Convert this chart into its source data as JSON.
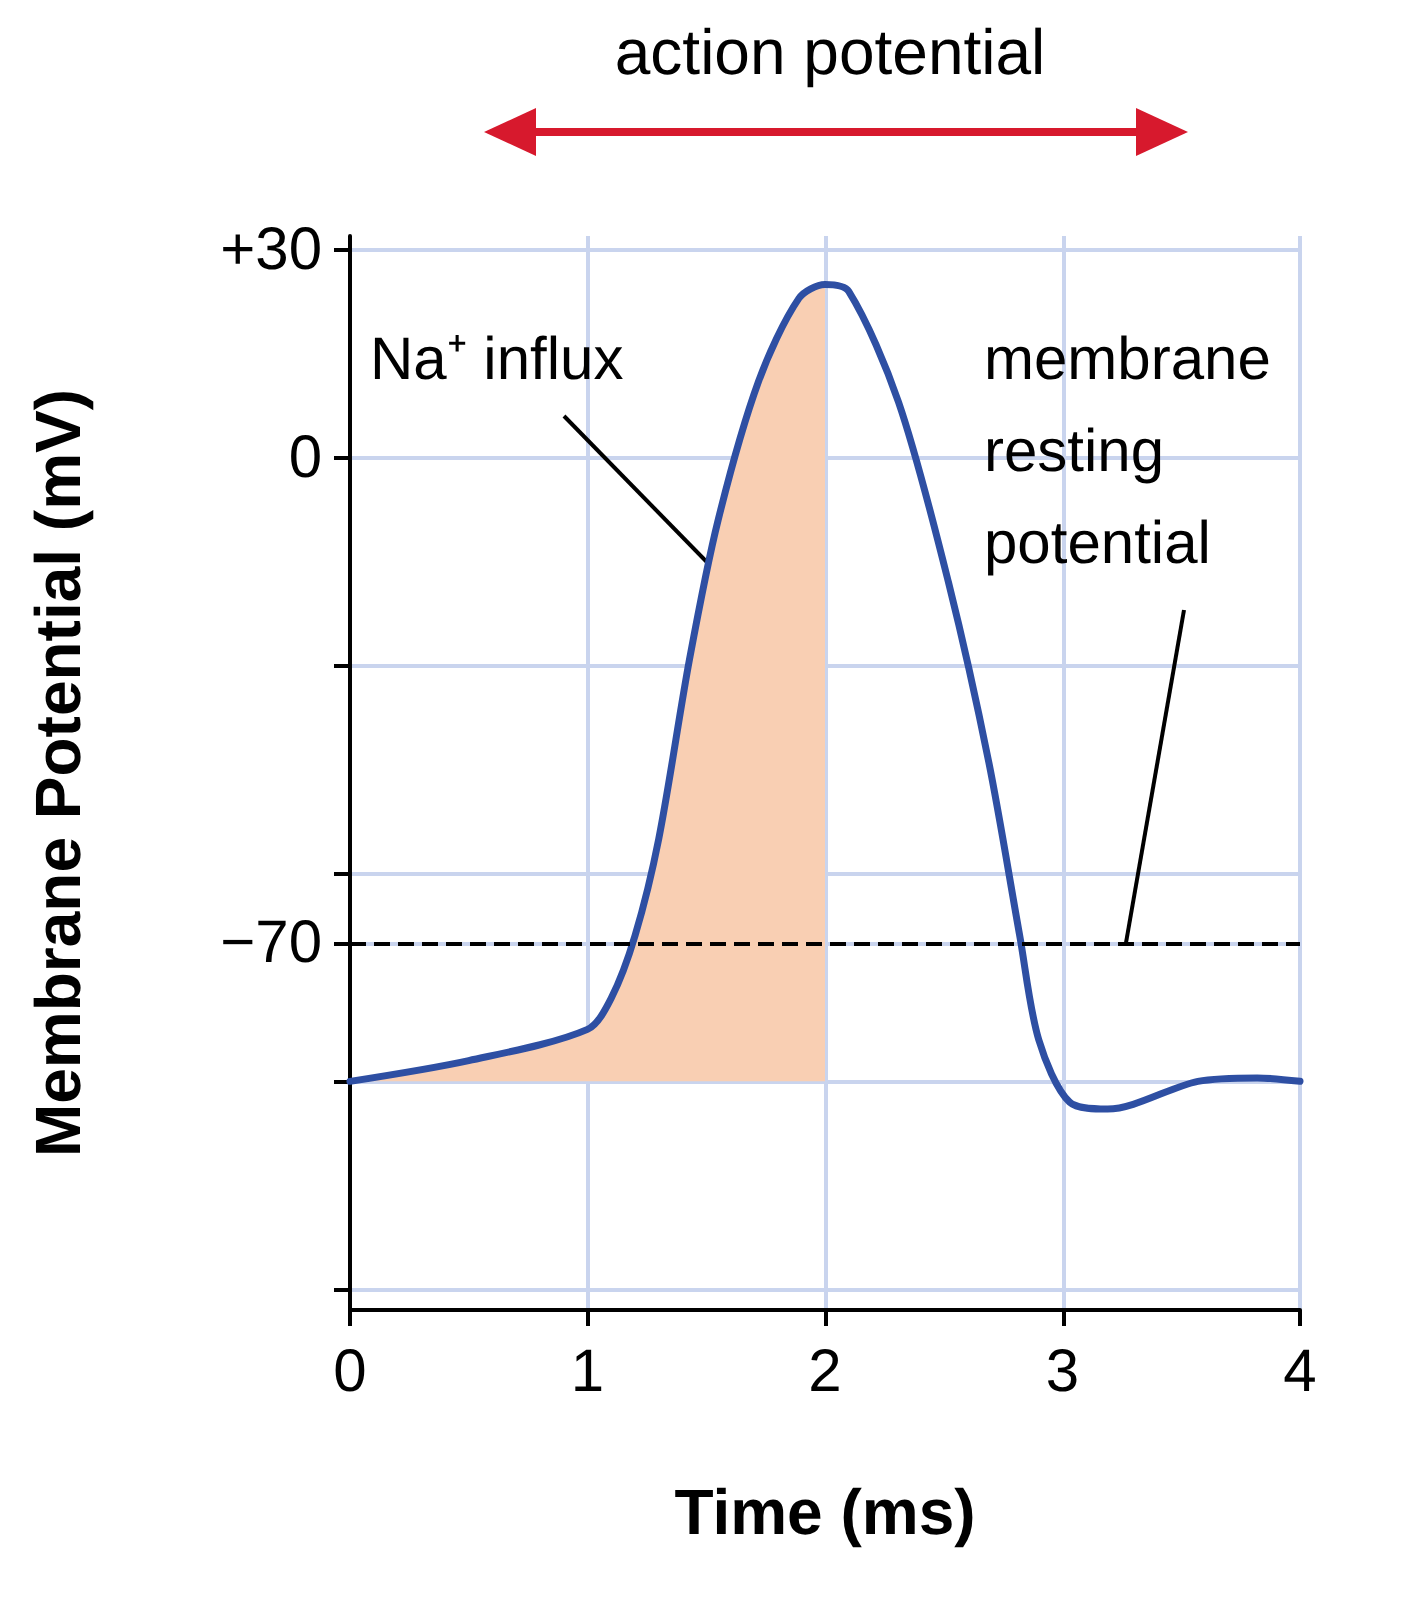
{
  "chart_data": {
    "type": "line",
    "xlabel": "Time (ms)",
    "ylabel": "Membrane Potential (mV)",
    "x": [
      0,
      0.5,
      1,
      1.1,
      1.2,
      1.3,
      1.43,
      1.55,
      1.72,
      1.89,
      2,
      2.1,
      2.31,
      2.52,
      2.69,
      2.82,
      2.9,
      3.03,
      3.19,
      3.57,
      3.82,
      4
    ],
    "series": [
      {
        "color": "#2e4fa3",
        "values": [
          -90,
          -87,
          -82.5,
          -78,
          -69,
          -55,
          -29,
          -9,
          11,
          23,
          25,
          24,
          8,
          -18,
          -44,
          -69,
          -84,
          -93,
          -94,
          -90,
          -89.5,
          -90
        ],
        "lower": [
          -90,
          -90,
          -90,
          -90,
          -90,
          -90,
          -90,
          -90,
          -90,
          -90,
          -90,
          null,
          null,
          null,
          null,
          null,
          null,
          null,
          null,
          null,
          null,
          null
        ],
        "upper": [
          -90,
          -87,
          -82.5,
          -78,
          -69,
          -55,
          -29,
          -9,
          11,
          23,
          25,
          null,
          null,
          null,
          null,
          null,
          null,
          null,
          null,
          null,
          null,
          null
        ]
      }
    ],
    "xlim": [
      0,
      4
    ],
    "xticks": [
      0,
      1,
      2,
      3,
      4
    ],
    "ylim": [
      -123,
      32
    ],
    "yticks": [
      {
        "value": 30,
        "label": "+30"
      },
      0,
      {
        "value": -30,
        "label": null
      },
      {
        "value": -60,
        "label": null
      },
      {
        "value": -70,
        "label": "−70"
      },
      {
        "value": -90,
        "label": null
      },
      {
        "value": -120,
        "label": null
      }
    ],
    "ref_lines": [
      {
        "axis": "y",
        "value": -70,
        "label": "membrane\nresting\npotential",
        "color": "#000000",
        "line_style": "dashed"
      }
    ],
    "annotations": [
      "action potential",
      "Na⁺ influx"
    ],
    "grid": true,
    "marker": "none",
    "line_style": "solid"
  }
}
